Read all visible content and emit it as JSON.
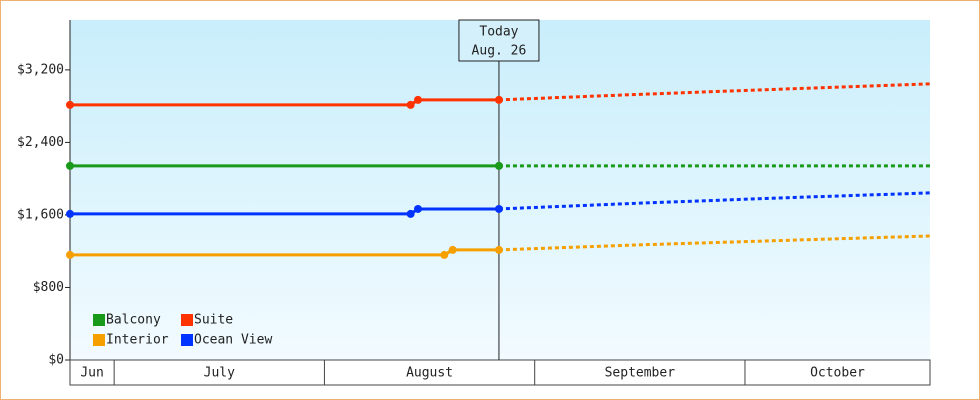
{
  "chart_data": {
    "type": "line",
    "ylim": [
      0,
      3750
    ],
    "yticks": [
      {
        "value": 0,
        "label": "$0"
      },
      {
        "value": 800,
        "label": "$800"
      },
      {
        "value": 1600,
        "label": "$1,600"
      },
      {
        "value": 2400,
        "label": "$2,400"
      },
      {
        "value": 3200,
        "label": "$3,200"
      }
    ],
    "xlim": [
      6.79,
      10.88
    ],
    "xticks": [
      7,
      8,
      9,
      10
    ],
    "months": [
      "Jun",
      "July",
      "August",
      "September",
      "October"
    ],
    "today": {
      "label": "Today",
      "date": "Aug. 26",
      "x": 8.83
    },
    "legend": "bottom-left",
    "series": [
      {
        "name": "Balcony",
        "color": "#1a9a1a",
        "x": [
          6.79,
          8.83,
          10.88
        ],
        "values": [
          2141,
          2141,
          null
        ],
        "forecast": [
          null,
          2141,
          2141
        ]
      },
      {
        "name": "Suite",
        "color": "#ff3300",
        "x": [
          6.79,
          8.41,
          8.445,
          8.83,
          9.5,
          10.2,
          10.88
        ],
        "values": [
          2814,
          2814,
          2869,
          2869,
          null,
          null,
          null
        ],
        "forecast": [
          null,
          null,
          null,
          2869,
          2930,
          2990,
          3046
        ]
      },
      {
        "name": "Interior",
        "color": "#f5a000",
        "x": [
          6.79,
          8.57,
          8.61,
          8.83,
          9.5,
          10.2,
          10.88
        ],
        "values": [
          1159,
          1159,
          1214,
          1214,
          null,
          null,
          null
        ],
        "forecast": [
          null,
          null,
          null,
          1214,
          1270,
          1320,
          1368
        ]
      },
      {
        "name": "Ocean View",
        "color": "#0033ff",
        "x": [
          6.79,
          8.41,
          8.445,
          8.83,
          9.5,
          10.2,
          10.88
        ],
        "values": [
          1611,
          1611,
          1666,
          1666,
          null,
          null,
          null
        ],
        "forecast": [
          null,
          null,
          null,
          1666,
          1730,
          1790,
          1843
        ]
      }
    ]
  }
}
